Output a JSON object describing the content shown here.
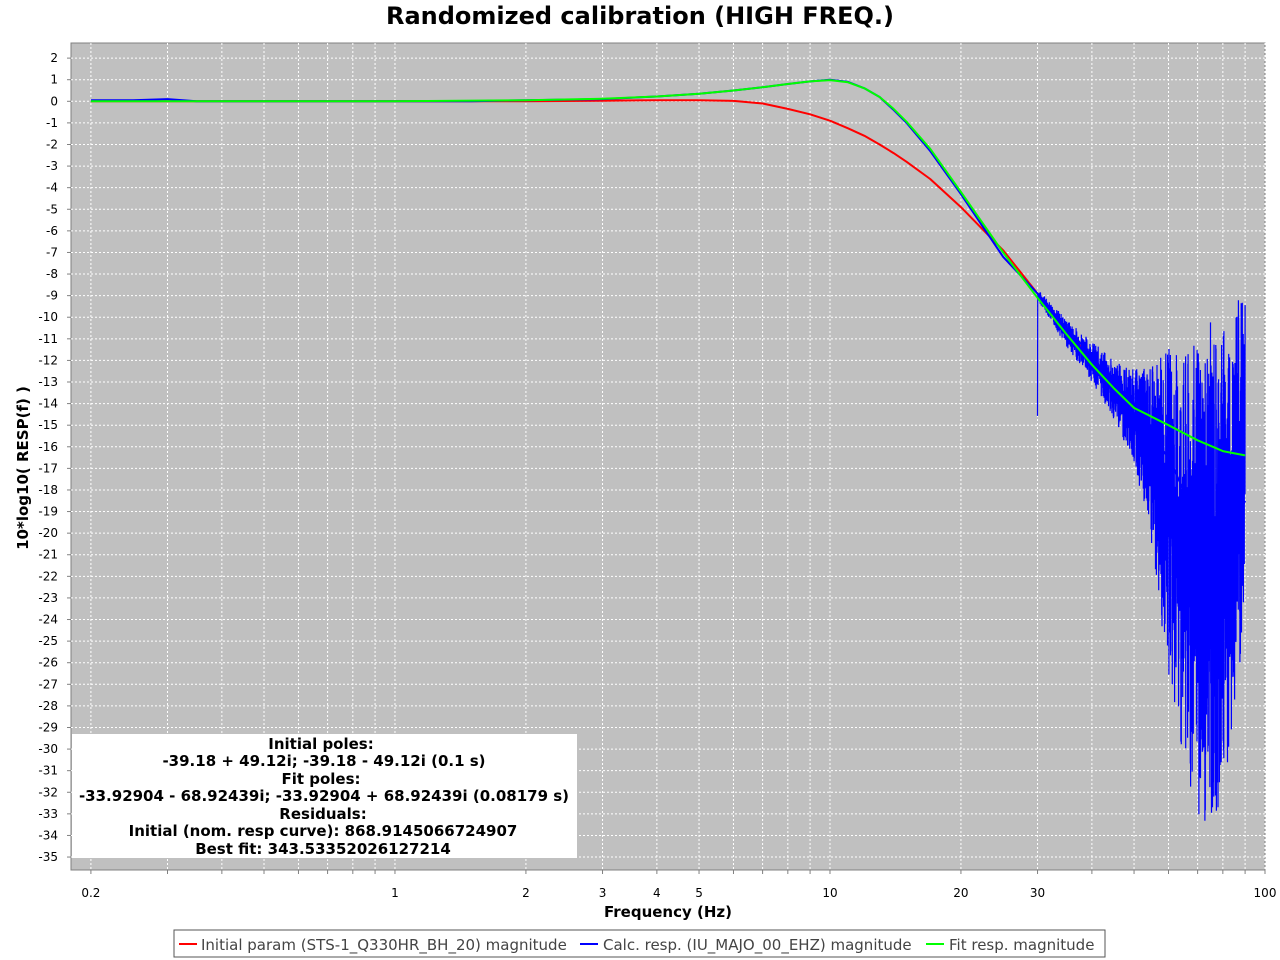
{
  "chart_data": {
    "type": "line",
    "title": "Randomized calibration (HIGH FREQ.)",
    "xlabel": "Frequency (Hz)",
    "ylabel": "10*log10( RESP(f) )",
    "x_scale": "log",
    "xlim": [
      0.18,
      100
    ],
    "ylim": [
      -35.6,
      2.7
    ],
    "grid": true,
    "legend_position": "bottom-center",
    "x_ticks": [
      {
        "value": 0.2,
        "label": "0.2"
      },
      {
        "value": 1,
        "label": "1"
      },
      {
        "value": 2,
        "label": "2"
      },
      {
        "value": 3,
        "label": "3"
      },
      {
        "value": 4,
        "label": "4"
      },
      {
        "value": 5,
        "label": "5"
      },
      {
        "value": 10,
        "label": "10"
      },
      {
        "value": 20,
        "label": "20"
      },
      {
        "value": 30,
        "label": "30"
      },
      {
        "value": 100,
        "label": "100"
      }
    ],
    "y_ticks": [
      2,
      1,
      0,
      -1,
      -2,
      -3,
      -4,
      -5,
      -6,
      -7,
      -8,
      -9,
      -10,
      -11,
      -12,
      -13,
      -14,
      -15,
      -16,
      -17,
      -18,
      -19,
      -20,
      -21,
      -22,
      -23,
      -24,
      -25,
      -26,
      -27,
      -28,
      -29,
      -30,
      -31,
      -32,
      -33,
      -34,
      -35
    ],
    "series": [
      {
        "name": "Initial param (STS-1_Q330HR_BH_20) magnitude",
        "color": "#ff0000",
        "x": [
          0.2,
          0.5,
          1,
          2,
          3,
          4,
          5,
          6,
          7,
          8,
          9,
          10,
          11,
          12,
          13,
          14,
          15,
          17,
          20,
          25,
          30,
          35,
          40,
          45,
          49
        ],
        "y": [
          0,
          0,
          0,
          0,
          0.03,
          0.05,
          0.05,
          0.02,
          -0.1,
          -0.35,
          -0.6,
          -0.9,
          -1.25,
          -1.6,
          -2.0,
          -2.4,
          -2.8,
          -3.6,
          -4.9,
          -6.9,
          -8.9,
          -10.6,
          -12.0,
          -13.3,
          -14.2
        ]
      },
      {
        "name": "Calc. resp. (IU_MAJO_00_EHZ) magnitude",
        "color": "#0000ff",
        "x": [
          0.2,
          0.25,
          0.3,
          0.35,
          0.4,
          0.5,
          0.6,
          0.8,
          1,
          1.5,
          2,
          3,
          4,
          5,
          6,
          7,
          8,
          9,
          10,
          11,
          12,
          13,
          14,
          15,
          17,
          20,
          25,
          30,
          35,
          40,
          45,
          50,
          55,
          60,
          65,
          70,
          75,
          80,
          85,
          90
        ],
        "y": [
          0.05,
          0.05,
          0.1,
          0.0,
          0.0,
          0.0,
          0.0,
          0.0,
          0.0,
          0.0,
          0.05,
          0.1,
          0.22,
          0.35,
          0.5,
          0.65,
          0.8,
          0.92,
          1.0,
          0.9,
          0.6,
          0.2,
          -0.4,
          -1.0,
          -2.3,
          -4.3,
          -7.2,
          -8.9,
          -10.5,
          -11.8,
          -13.2,
          -14.0,
          -15.5,
          -16.5,
          -18.0,
          -19.0,
          -20.0,
          -20.5,
          -19.5,
          -18.5
        ],
        "noise_band": {
          "x": [
            30,
            35,
            40,
            45,
            50,
            55,
            60,
            65,
            70,
            75,
            80,
            85,
            88,
            90
          ],
          "upper": [
            -8.7,
            -10.1,
            -11.1,
            -12.0,
            -12.4,
            -12.2,
            -11.3,
            -11.8,
            -11.0,
            -10.2,
            -10.0,
            -9.2,
            -9.1,
            -9.3
          ],
          "lower": [
            -9.2,
            -11.4,
            -13.0,
            -14.8,
            -16.8,
            -21.0,
            -27.0,
            -30.5,
            -33.5,
            -34.1,
            -32.0,
            -29.0,
            -27.0,
            -24.8
          ]
        }
      },
      {
        "name": "Fit resp. magnitude",
        "color": "#00ff00",
        "x": [
          0.2,
          0.5,
          1,
          2,
          3,
          4,
          5,
          6,
          7,
          8,
          9,
          10,
          11,
          12,
          13,
          14,
          15,
          17,
          20,
          25,
          30,
          35,
          40,
          45,
          50,
          60,
          70,
          80,
          90
        ],
        "y": [
          0,
          0,
          0,
          0.05,
          0.12,
          0.22,
          0.35,
          0.5,
          0.65,
          0.8,
          0.92,
          0.98,
          0.88,
          0.6,
          0.2,
          -0.35,
          -0.95,
          -2.2,
          -4.2,
          -7.0,
          -9.1,
          -10.8,
          -12.2,
          -13.3,
          -14.2,
          -15.0,
          -15.7,
          -16.2,
          -16.4
        ]
      }
    ],
    "annotation": {
      "lines": [
        "Initial poles:",
        "-39.18 + 49.12i;  -39.18 - 49.12i (0.1 s)",
        "Fit poles:",
        "-33.92904 - 68.92439i;  -33.92904 + 68.92439i (0.08179 s)",
        "Residuals:",
        "Initial (nom. resp curve): 868.9145066724907",
        "Best fit: 343.53352026127214"
      ]
    }
  }
}
